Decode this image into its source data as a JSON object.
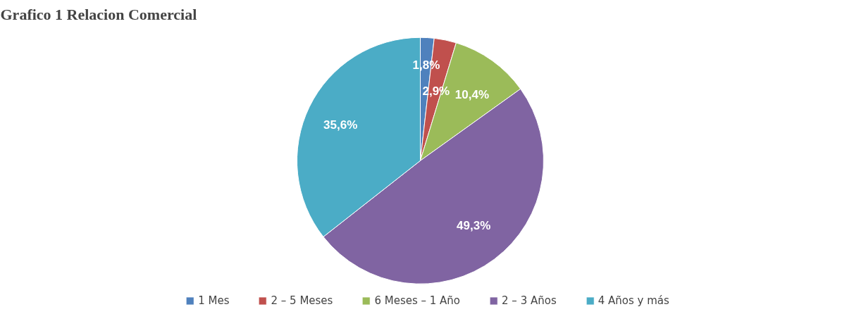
{
  "chart_data": {
    "type": "pie",
    "title": "Grafico 1 Relacion Comercial",
    "categories": [
      "1 Mes",
      "2 – 5 Meses",
      "6 Meses – 1 Año",
      "2 – 3 Años",
      "4 Años y más"
    ],
    "values": [
      1.8,
      2.9,
      10.4,
      49.3,
      35.6
    ],
    "colors": [
      "#4f81bd",
      "#c0504d",
      "#9bbb59",
      "#8064a2",
      "#4bacc6"
    ],
    "value_labels": [
      "1,8%",
      "2,9%",
      "10,4%",
      "49,3%",
      "35,6%"
    ],
    "legend": "bottom"
  }
}
